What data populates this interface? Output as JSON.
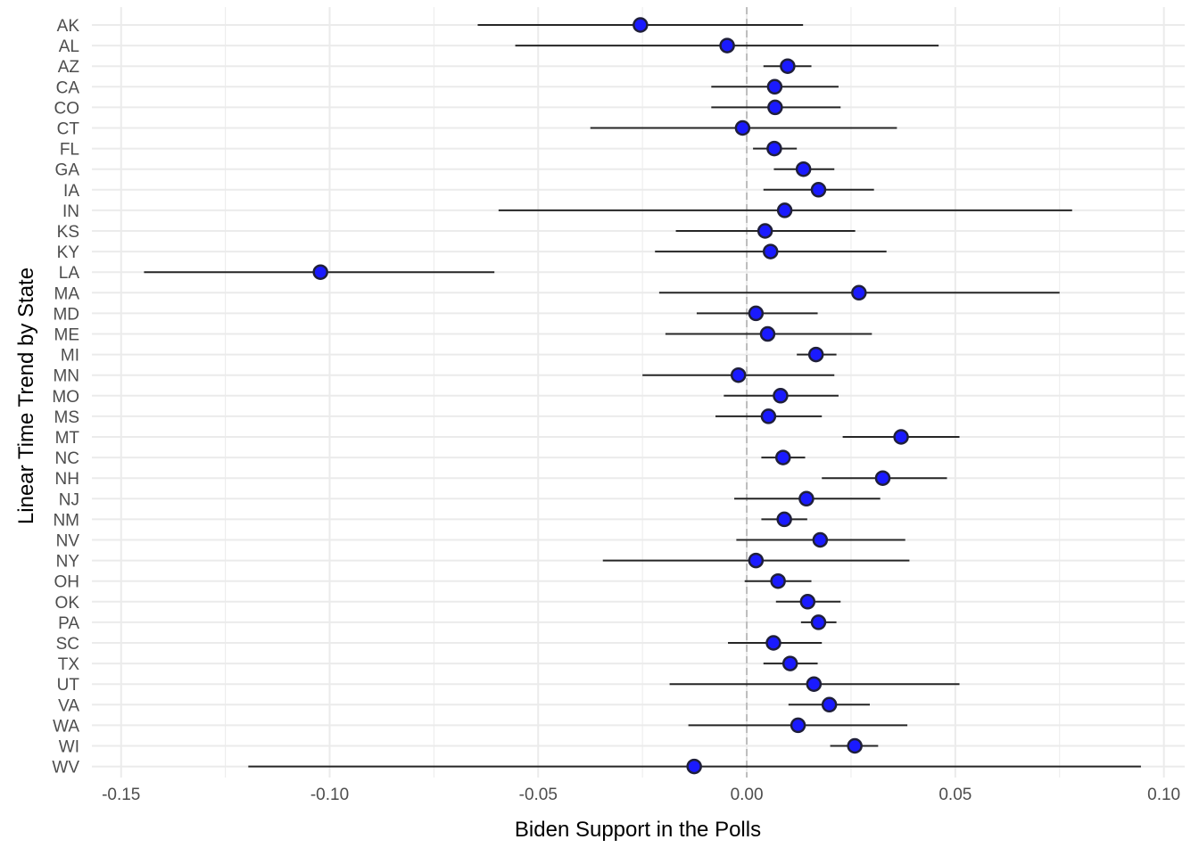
{
  "chart_data": {
    "type": "scatter",
    "title": "",
    "xlabel": "Biden Support in the Polls",
    "ylabel": "Linear Time Trend by State",
    "xlim": [
      -0.157,
      0.105
    ],
    "xticks": [
      -0.15,
      -0.1,
      -0.05,
      0.0,
      0.05,
      0.1
    ],
    "xtick_labels": [
      "-0.15",
      "-0.10",
      "-0.05",
      "0.00",
      "0.05",
      "0.10"
    ],
    "grid": true,
    "reference_line": 0,
    "colors": {
      "point_fill": "#1a1aff",
      "point_stroke": "#1f1f3a",
      "interval": "#262626",
      "grid": "#ebebeb",
      "reference": "#bdbdbd"
    },
    "states": [
      "AK",
      "AL",
      "AZ",
      "CA",
      "CO",
      "CT",
      "FL",
      "GA",
      "IA",
      "IN",
      "KS",
      "KY",
      "LA",
      "MA",
      "MD",
      "ME",
      "MI",
      "MN",
      "MO",
      "MS",
      "MT",
      "NC",
      "NH",
      "NJ",
      "NM",
      "NV",
      "NY",
      "OH",
      "OK",
      "PA",
      "SC",
      "TX",
      "UT",
      "VA",
      "WA",
      "WI",
      "WV"
    ],
    "estimate": [
      -0.0255,
      -0.0047,
      0.0098,
      0.0067,
      0.0068,
      -0.001,
      0.0066,
      0.0136,
      0.0172,
      0.0091,
      0.0044,
      0.0057,
      -0.1022,
      0.0269,
      0.0022,
      0.005,
      0.0166,
      -0.002,
      0.0081,
      0.0052,
      0.037,
      0.0087,
      0.0326,
      0.0143,
      0.009,
      0.0176,
      0.0022,
      0.0075,
      0.0146,
      0.0172,
      0.0064,
      0.0104,
      0.0161,
      0.0198,
      0.0123,
      0.0259,
      -0.0126
    ],
    "lower": [
      -0.0645,
      -0.0555,
      0.004,
      -0.0085,
      -0.0085,
      -0.0375,
      0.0015,
      0.0065,
      0.004,
      -0.0595,
      -0.017,
      -0.022,
      -0.1445,
      -0.021,
      -0.012,
      -0.0195,
      0.012,
      -0.025,
      -0.0055,
      -0.0075,
      0.023,
      0.0035,
      0.018,
      -0.003,
      0.0035,
      -0.0025,
      -0.0345,
      -0.0005,
      0.007,
      0.013,
      -0.0045,
      0.004,
      -0.0185,
      0.01,
      -0.014,
      0.02,
      -0.1195
    ],
    "upper": [
      0.0135,
      0.046,
      0.0155,
      0.022,
      0.0225,
      0.036,
      0.012,
      0.021,
      0.0305,
      0.078,
      0.026,
      0.0335,
      -0.0605,
      0.075,
      0.017,
      0.03,
      0.0215,
      0.021,
      0.022,
      0.018,
      0.051,
      0.014,
      0.048,
      0.032,
      0.0145,
      0.038,
      0.039,
      0.0155,
      0.0225,
      0.0215,
      0.018,
      0.017,
      0.051,
      0.0295,
      0.0385,
      0.0315,
      0.0945
    ]
  }
}
